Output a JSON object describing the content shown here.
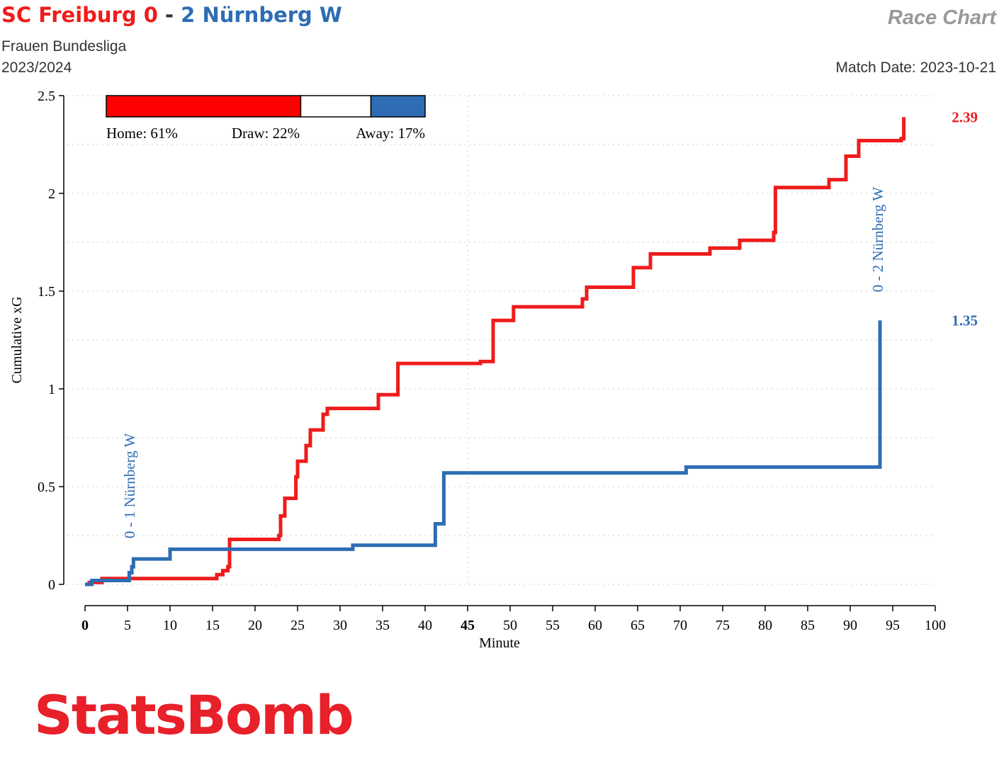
{
  "header": {
    "home_team": "SC Freiburg",
    "home_score": "0",
    "separator": "-",
    "away_score": "2",
    "away_team": "Nürnberg W",
    "competition": "Frauen Bundesliga",
    "season": "2023/2024",
    "chart_label": "Race Chart",
    "match_date": "Match Date: 2023-10-21"
  },
  "brand": {
    "logo_text": "StatsBomb"
  },
  "colors": {
    "home": "#ee1c1c",
    "away": "#2e6db4",
    "axis": "#000000",
    "grid": "#cccccc"
  },
  "chart_data": {
    "type": "line",
    "xlabel": "Minute",
    "ylabel": "Cumulative xG",
    "xlim": [
      0,
      100
    ],
    "ylim": [
      0,
      2.5
    ],
    "x_ticks": [
      0,
      5,
      10,
      15,
      20,
      25,
      30,
      35,
      40,
      45,
      50,
      55,
      60,
      65,
      70,
      75,
      80,
      85,
      90,
      95,
      100
    ],
    "y_ticks": [
      0,
      0.5,
      1,
      1.5,
      2,
      2.5
    ],
    "y_tick_labels": [
      "0",
      "0.5",
      "1",
      "1.5",
      "2",
      "2.5"
    ],
    "bold_x_ticks": [
      0,
      45
    ],
    "halftime_line": 45,
    "grid": "dotted horizontal",
    "series": [
      {
        "name": "SC Freiburg",
        "color": "#ee1c1c",
        "final_label": "2.39",
        "x": [
          0,
          0.5,
          2,
          15.5,
          16.2,
          16.8,
          17,
          22.8,
          23,
          23.5,
          24.8,
          25,
          25,
          26,
          26.5,
          28,
          28.5,
          34.5,
          34.9,
          36.8,
          46.5,
          48,
          48.2,
          50.4,
          54.5,
          58.5,
          59,
          59,
          64.5,
          66.5,
          69.5,
          73.5,
          77,
          81,
          81.2,
          87.5,
          89,
          89.5,
          91,
          93,
          93.2,
          96,
          96.3
        ],
        "y": [
          0,
          0.01,
          0.03,
          0.05,
          0.07,
          0.09,
          0.23,
          0.25,
          0.35,
          0.44,
          0.55,
          0.63,
          0.63,
          0.71,
          0.79,
          0.87,
          0.9,
          0.97,
          0.97,
          1.13,
          1.14,
          1.35,
          1.35,
          1.42,
          1.42,
          1.46,
          1.5,
          1.52,
          1.62,
          1.69,
          1.69,
          1.72,
          1.76,
          1.8,
          2.03,
          2.07,
          2.07,
          2.19,
          2.27,
          2.27,
          2.27,
          2.28,
          2.39
        ]
      },
      {
        "name": "Nürnberg W",
        "color": "#2e6db4",
        "final_label": "1.35",
        "x": [
          0,
          0.8,
          5.2,
          5.5,
          5.7,
          10,
          31.5,
          41.2,
          42.2,
          70.7,
          93.5
        ],
        "y": [
          0,
          0.02,
          0.06,
          0.09,
          0.13,
          0.18,
          0.2,
          0.31,
          0.57,
          0.6,
          1.35
        ]
      }
    ],
    "annotations": [
      {
        "text": "0 - 1 Nürnberg W",
        "x": 5.5,
        "color": "#2e6db4"
      },
      {
        "text": "0 - 2 Nürnberg W",
        "x": 93.5,
        "color": "#2e6db4"
      }
    ],
    "win_probability": [
      {
        "label": "Home: 61%",
        "value": 61,
        "color": "#ff0000"
      },
      {
        "label": "Draw: 22%",
        "value": 22,
        "color": "#ffffff"
      },
      {
        "label": "Away: 17%",
        "value": 17,
        "color": "#2e6db4"
      }
    ]
  }
}
